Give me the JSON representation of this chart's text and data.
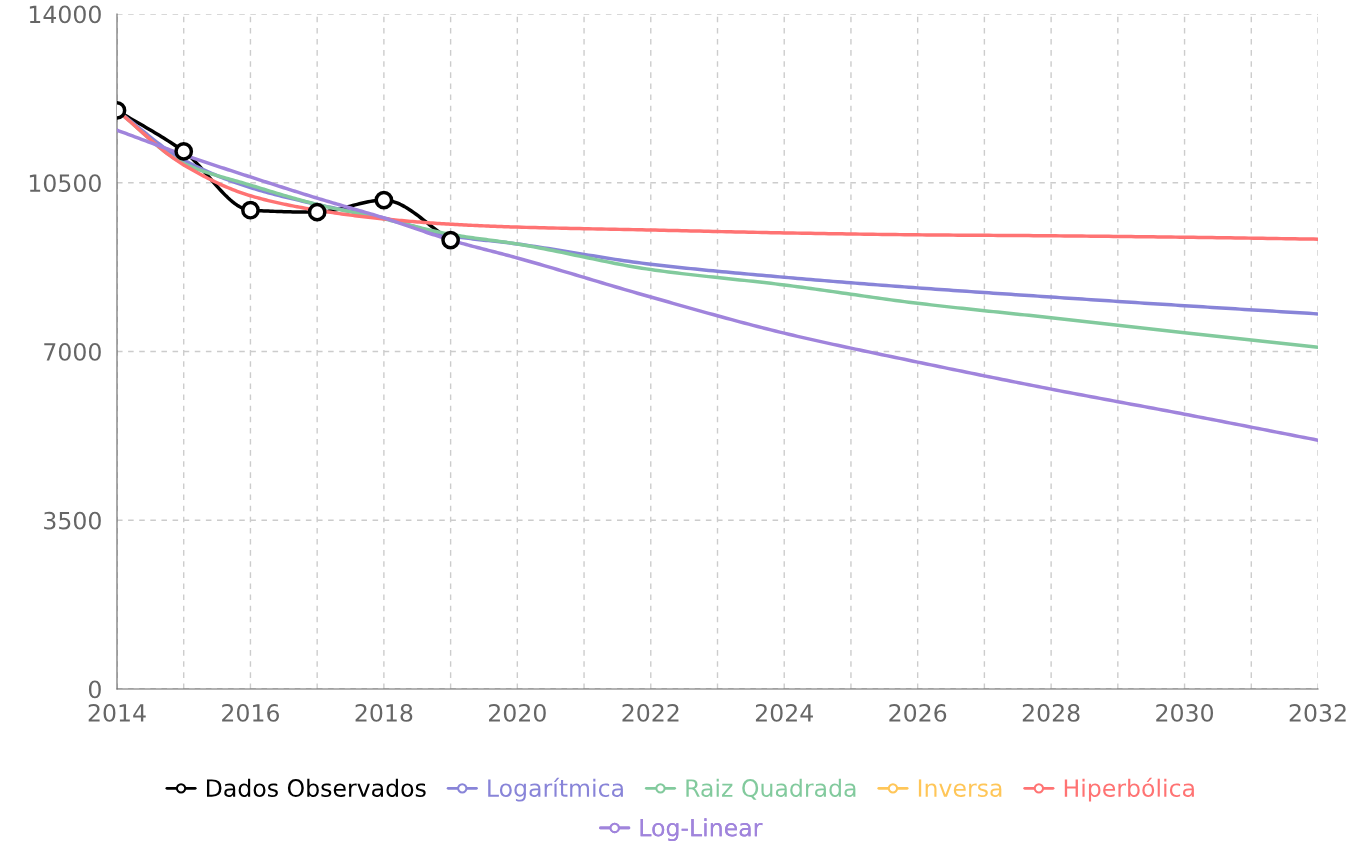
{
  "chart_data": {
    "type": "line",
    "xlim": [
      2014,
      2032
    ],
    "ylim": [
      0,
      14000
    ],
    "xticks": [
      2014,
      {
        "value": 2015,
        "label": null
      },
      2016,
      {
        "value": 2017,
        "label": null
      },
      2018,
      {
        "value": 2019,
        "label": null
      },
      2020,
      {
        "value": 2021,
        "label": null
      },
      2022,
      {
        "value": 2023,
        "label": null
      },
      2024,
      {
        "value": 2025,
        "label": null
      },
      2026,
      {
        "value": 2027,
        "label": null
      },
      2028,
      {
        "value": 2029,
        "label": null
      },
      2030,
      {
        "value": 2031,
        "label": null
      },
      2032
    ],
    "yticks": [
      0,
      3500,
      7000,
      10500,
      14000
    ],
    "grid": true,
    "legend": "bottom",
    "series": [
      {
        "name": "Dados Observados",
        "color": "#000000",
        "marker": "circle",
        "x": [
          2014,
          2015,
          2016,
          2017,
          2018,
          2019
        ],
        "values": [
          12000,
          11150,
          9930,
          9890,
          10140,
          9310
        ]
      },
      {
        "name": "Logarítmica",
        "color": "#8884d8",
        "marker": "none",
        "x": [
          2014,
          2015,
          2016,
          2017,
          2018,
          2019,
          2020,
          2022,
          2024,
          2026,
          2028,
          2030,
          2032
        ],
        "values": [
          12000,
          10970,
          10400,
          10050,
          9770,
          9400,
          9230,
          8810,
          8540,
          8320,
          8130,
          7950,
          7780
        ]
      },
      {
        "name": "Raiz Quadrada",
        "color": "#82ca9d",
        "marker": "none",
        "x": [
          2014,
          2015,
          2016,
          2017,
          2018,
          2019,
          2020,
          2022,
          2024,
          2026,
          2028,
          2030,
          2032
        ],
        "values": [
          12000,
          10900,
          10450,
          10050,
          9750,
          9430,
          9230,
          8700,
          8380,
          8000,
          7700,
          7390,
          7090
        ]
      },
      {
        "name": "Inversa",
        "color": "#ffc658",
        "marker": "none"
      },
      {
        "name": "Hiperbólica",
        "color": "#ff7373",
        "marker": "none",
        "x": [
          2014,
          2015,
          2016,
          2017,
          2018,
          2019,
          2020,
          2022,
          2024,
          2026,
          2028,
          2030,
          2032
        ],
        "values": [
          12000,
          10870,
          10230,
          9930,
          9750,
          9640,
          9580,
          9520,
          9460,
          9420,
          9400,
          9370,
          9330
        ]
      },
      {
        "name": "Log-Linear",
        "color": "#a084dc",
        "marker": "none",
        "x": [
          2014,
          2015,
          2016,
          2017,
          2018,
          2019,
          2020,
          2022,
          2024,
          2026,
          2028,
          2030,
          2032
        ],
        "values": [
          11590,
          11080,
          10620,
          10180,
          9770,
          9310,
          8940,
          8130,
          7380,
          6780,
          6220,
          5700,
          5160
        ]
      }
    ]
  }
}
